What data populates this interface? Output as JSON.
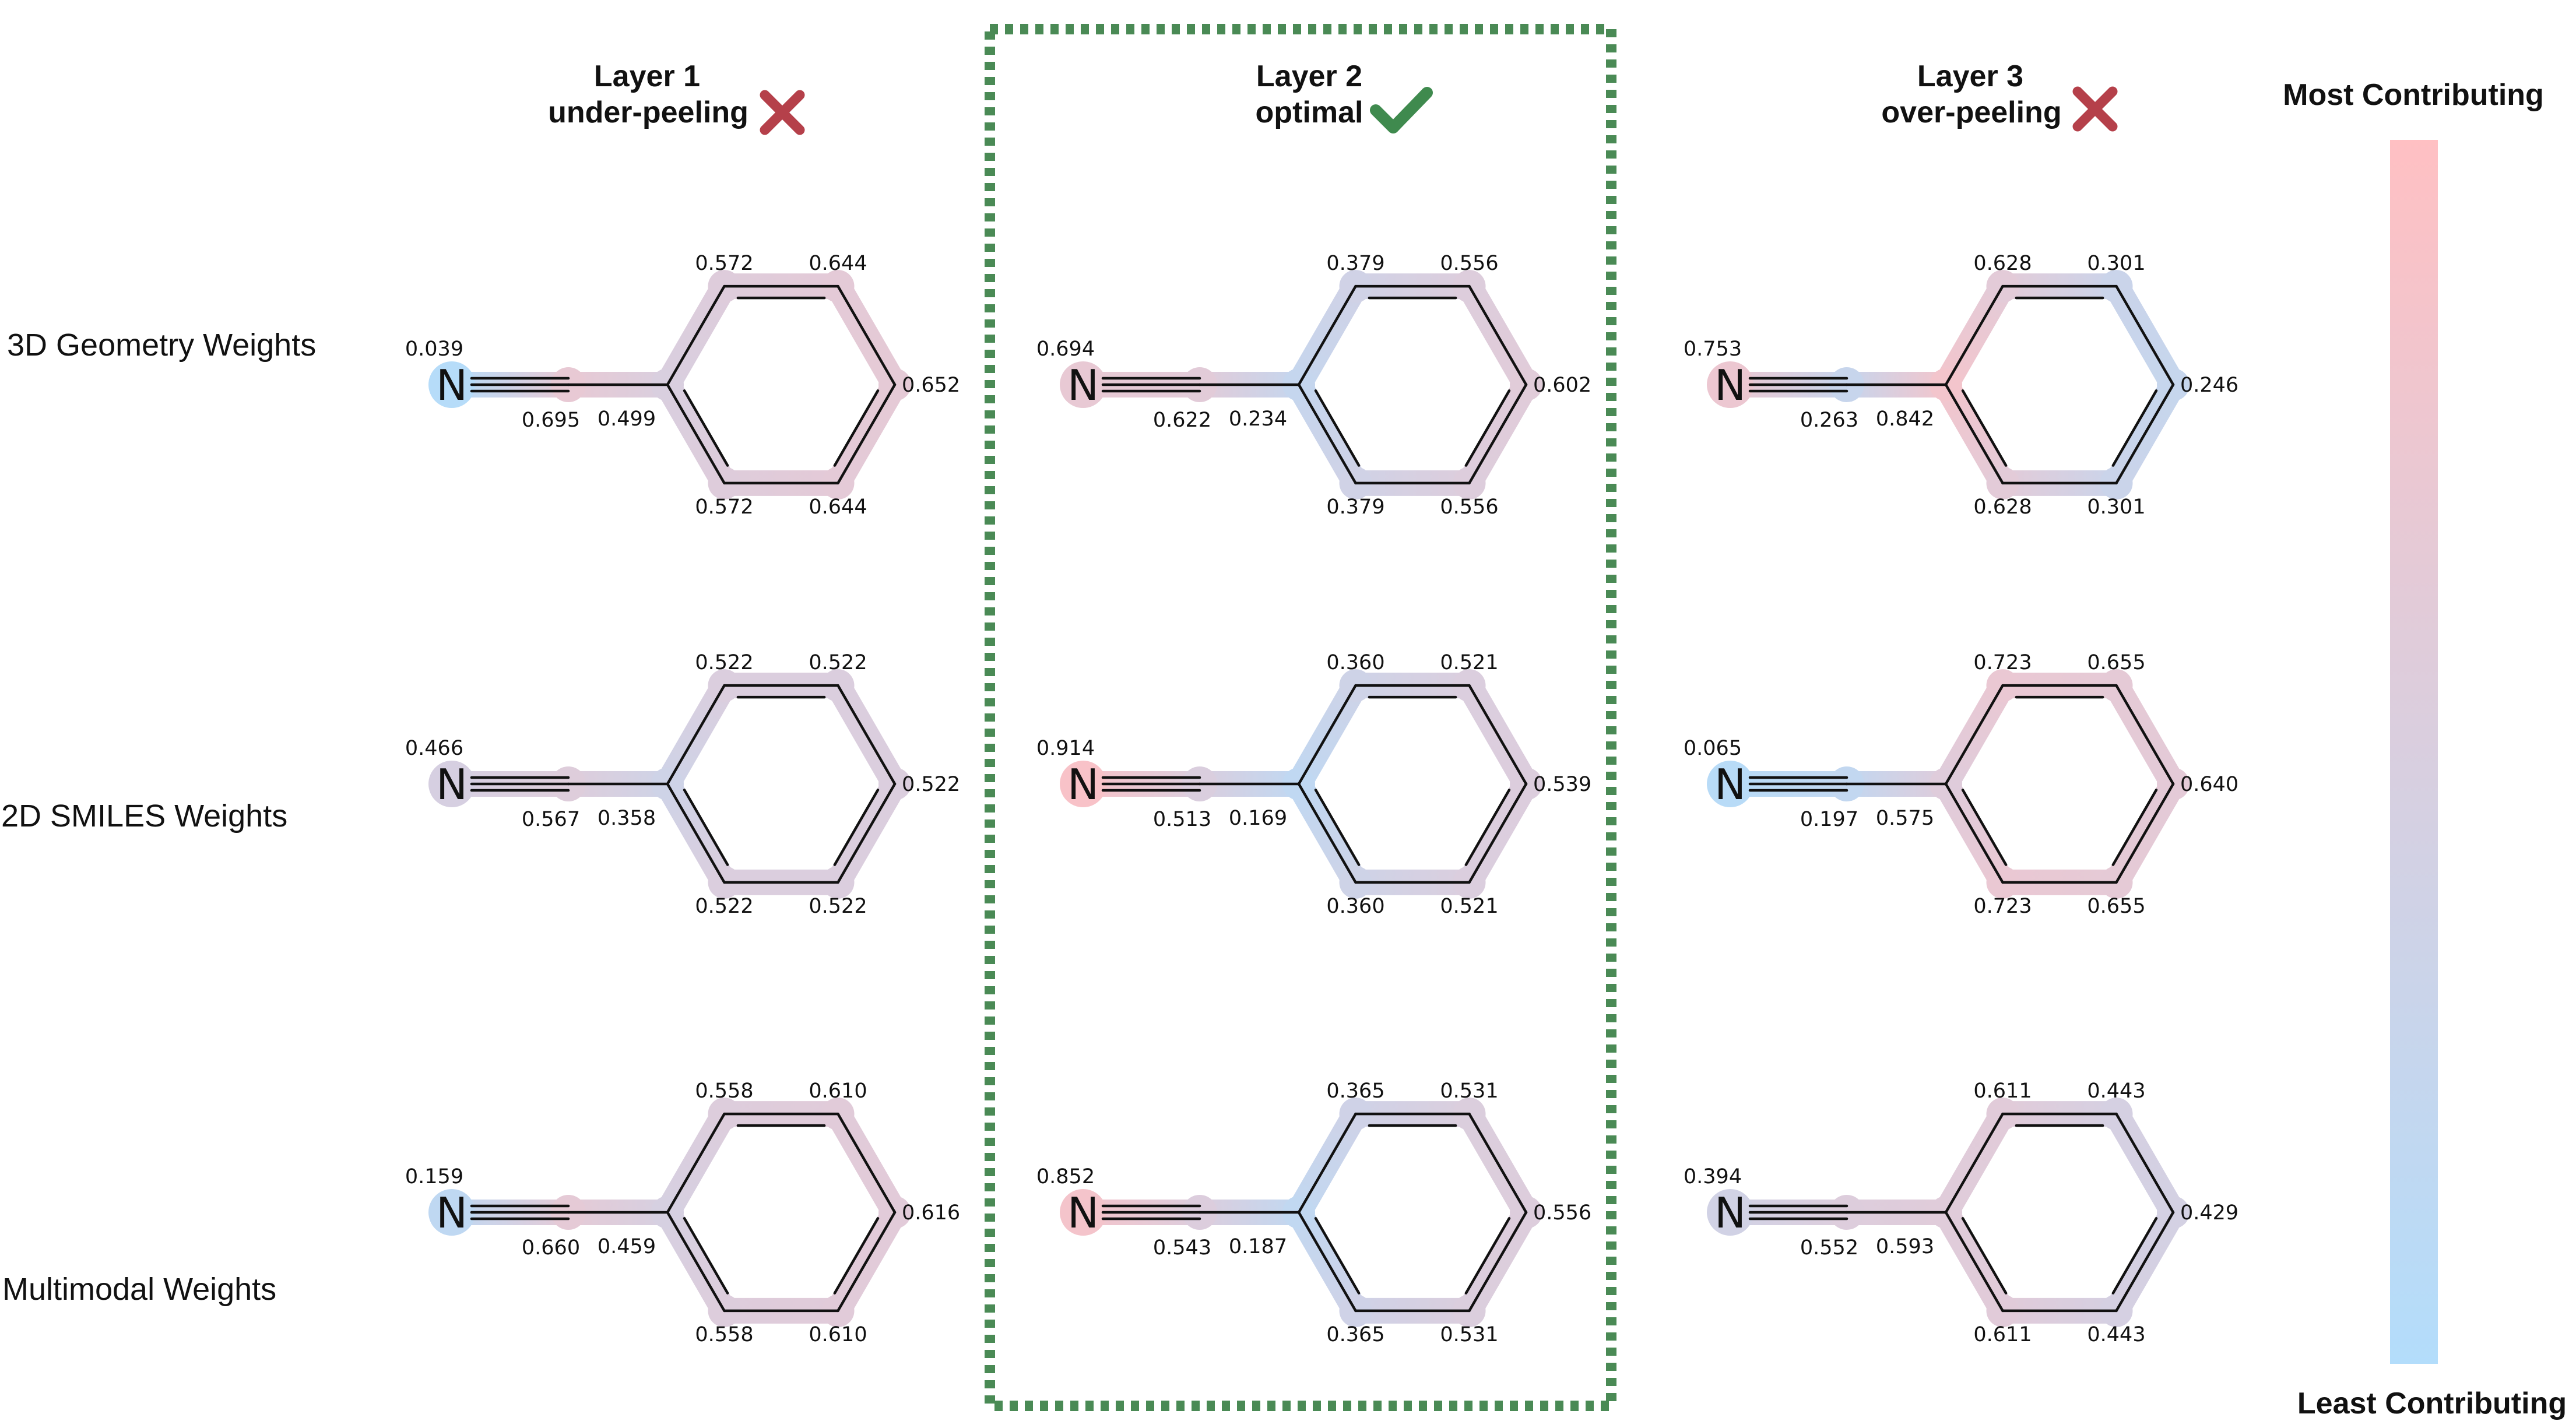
{
  "columns": [
    {
      "title": "Layer 1",
      "subtitle": "under-peeling",
      "status": "cross",
      "status_color": "#b5404a"
    },
    {
      "title": "Layer 2",
      "subtitle": "optimal",
      "status": "check",
      "status_color": "#3f8a4e"
    },
    {
      "title": "Layer 3",
      "subtitle": "over-peeling",
      "status": "cross",
      "status_color": "#b5404a"
    }
  ],
  "rows": [
    {
      "label": "3D Geometry Weights"
    },
    {
      "label": "2D SMILES Weights"
    },
    {
      "label": "Multimodal Weights"
    }
  ],
  "atom_symbol": "N",
  "molecules": [
    [
      {
        "n": "0.039",
        "cn": "0.695",
        "ipso": "0.499",
        "ortho": "0.572",
        "meta": "0.644",
        "para": "0.652"
      },
      {
        "n": "0.694",
        "cn": "0.622",
        "ipso": "0.234",
        "ortho": "0.379",
        "meta": "0.556",
        "para": "0.602"
      },
      {
        "n": "0.753",
        "cn": "0.263",
        "ipso": "0.842",
        "ortho": "0.628",
        "meta": "0.301",
        "para": "0.246"
      }
    ],
    [
      {
        "n": "0.466",
        "cn": "0.567",
        "ipso": "0.358",
        "ortho": "0.522",
        "meta": "0.522",
        "para": "0.522"
      },
      {
        "n": "0.914",
        "cn": "0.513",
        "ipso": "0.169",
        "ortho": "0.360",
        "meta": "0.521",
        "para": "0.539"
      },
      {
        "n": "0.065",
        "cn": "0.197",
        "ipso": "0.575",
        "ortho": "0.723",
        "meta": "0.655",
        "para": "0.640"
      }
    ],
    [
      {
        "n": "0.159",
        "cn": "0.660",
        "ipso": "0.459",
        "ortho": "0.558",
        "meta": "0.610",
        "para": "0.616"
      },
      {
        "n": "0.852",
        "cn": "0.543",
        "ipso": "0.187",
        "ortho": "0.365",
        "meta": "0.531",
        "para": "0.556"
      },
      {
        "n": "0.394",
        "cn": "0.552",
        "ipso": "0.593",
        "ortho": "0.611",
        "meta": "0.443",
        "para": "0.429"
      }
    ]
  ],
  "legend": {
    "top": "Most Contributing",
    "bottom": "Least Contributing",
    "color_high": "#ffc0c3",
    "color_low": "#b3ddfb"
  },
  "highlight_color": "#4a8a55"
}
